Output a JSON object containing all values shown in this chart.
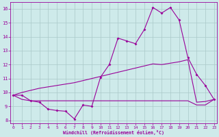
{
  "xlabel": "Windchill (Refroidissement éolien,°C)",
  "x_all": [
    0,
    1,
    2,
    3,
    4,
    5,
    6,
    7,
    8,
    9,
    10,
    11,
    12,
    13,
    14,
    15,
    16,
    17,
    18,
    19,
    20,
    21,
    22,
    23
  ],
  "line_marked": [
    9.8,
    9.8,
    9.4,
    9.3,
    8.8,
    8.7,
    8.65,
    8.1,
    9.1,
    9.0,
    11.1,
    12.0,
    13.9,
    13.7,
    13.5,
    14.5,
    16.1,
    15.7,
    16.1,
    15.2,
    12.5,
    11.3,
    10.5,
    9.5
  ],
  "line_rising": [
    9.8,
    10.0,
    10.15,
    10.3,
    10.4,
    10.5,
    10.6,
    10.7,
    10.85,
    11.0,
    11.15,
    11.3,
    11.45,
    11.6,
    11.75,
    11.9,
    12.05,
    12.0,
    12.1,
    12.2,
    12.35,
    9.3,
    9.35,
    9.5
  ],
  "line_flat": [
    9.8,
    9.5,
    9.4,
    9.4,
    9.4,
    9.4,
    9.4,
    9.4,
    9.4,
    9.4,
    9.4,
    9.4,
    9.4,
    9.4,
    9.4,
    9.4,
    9.4,
    9.4,
    9.4,
    9.4,
    9.4,
    9.1,
    9.1,
    9.5
  ],
  "line_color": "#990099",
  "bg_color": "#ceeaea",
  "grid_color": "#aac8c8",
  "ylim_min": 7.8,
  "ylim_max": 16.5,
  "xlim_min": -0.3,
  "xlim_max": 23.3
}
